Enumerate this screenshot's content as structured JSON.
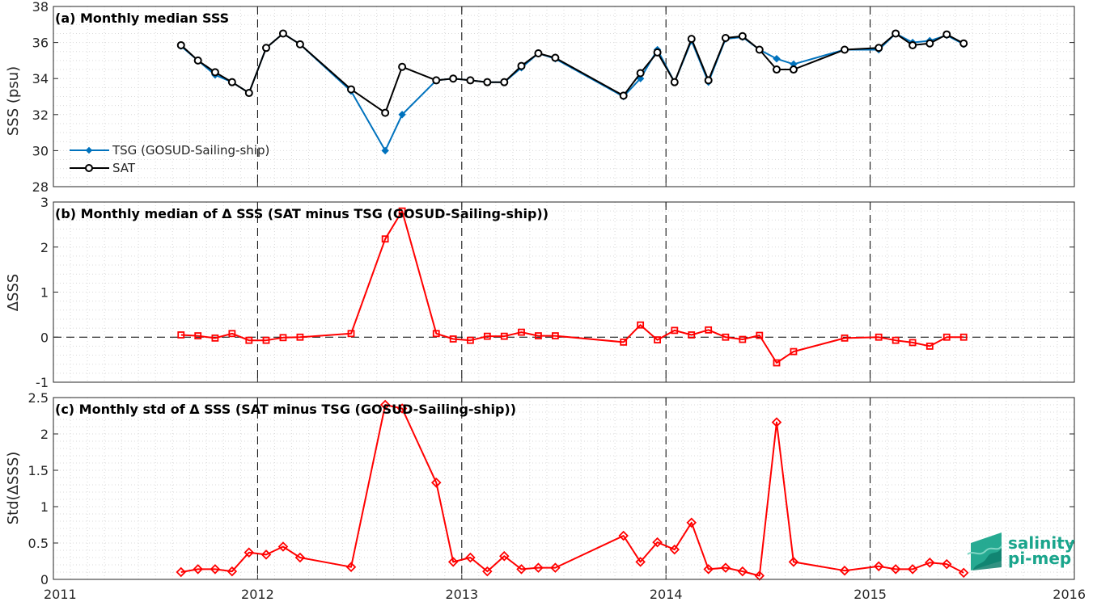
{
  "colors": {
    "tsg": "#0072bd",
    "sat": "#000000",
    "delta": "#ff0000",
    "logo": "#1aa58c"
  },
  "logo": {
    "line1": "salinity",
    "line2": "pi-mep"
  },
  "chart_data": [
    {
      "type": "line",
      "title": "(a) Monthly median SSS",
      "ylabel": "SSS (psu)",
      "xlim": [
        2011,
        2016
      ],
      "ylim": [
        28,
        38
      ],
      "xticks": [
        "2011",
        "2012",
        "2013",
        "2014",
        "2015",
        "2016"
      ],
      "yticks": [
        "28",
        "30",
        "32",
        "34",
        "36",
        "38"
      ],
      "grid": true,
      "legend_position": "bottom-left",
      "series": [
        {
          "name": "TSG (GOSUD-Sailing-ship)",
          "marker": "diamond-filled",
          "color": "#0072bd",
          "x": [
            2011.625,
            2011.708,
            2011.792,
            2011.875,
            2011.958,
            2012.042,
            2012.125,
            2012.208,
            2012.458,
            2012.625,
            2012.708,
            2012.875,
            2012.958,
            2013.042,
            2013.125,
            2013.208,
            2013.292,
            2013.375,
            2013.458,
            2013.792,
            2013.875,
            2013.958,
            2014.042,
            2014.125,
            2014.208,
            2014.292,
            2014.375,
            2014.458,
            2014.542,
            2014.625,
            2014.875,
            2015.042,
            2015.125,
            2015.208,
            2015.292,
            2015.375,
            2015.458
          ],
          "y": [
            35.8,
            35.0,
            34.2,
            33.8,
            33.2,
            35.7,
            36.5,
            35.9,
            33.3,
            30.0,
            32.0,
            33.9,
            34.0,
            33.9,
            33.8,
            33.8,
            34.6,
            35.4,
            35.1,
            33.0,
            34.0,
            35.6,
            33.8,
            36.1,
            33.8,
            36.2,
            36.3,
            35.6,
            35.1,
            34.8,
            35.6,
            35.6,
            36.5,
            36.0,
            36.1,
            36.4,
            35.9
          ]
        },
        {
          "name": "SAT",
          "marker": "circle-open",
          "color": "#000000",
          "x": [
            2011.625,
            2011.708,
            2011.792,
            2011.875,
            2011.958,
            2012.042,
            2012.125,
            2012.208,
            2012.458,
            2012.625,
            2012.708,
            2012.875,
            2012.958,
            2013.042,
            2013.125,
            2013.208,
            2013.292,
            2013.375,
            2013.458,
            2013.792,
            2013.875,
            2013.958,
            2014.042,
            2014.125,
            2014.208,
            2014.292,
            2014.375,
            2014.458,
            2014.542,
            2014.625,
            2014.875,
            2015.042,
            2015.125,
            2015.208,
            2015.292,
            2015.375,
            2015.458
          ],
          "y": [
            35.85,
            35.0,
            34.35,
            33.8,
            33.2,
            35.7,
            36.5,
            35.9,
            33.4,
            32.1,
            34.65,
            33.9,
            34.0,
            33.9,
            33.8,
            33.8,
            34.7,
            35.4,
            35.15,
            33.05,
            34.3,
            35.45,
            33.8,
            36.2,
            33.9,
            36.25,
            36.35,
            35.6,
            34.5,
            34.5,
            35.6,
            35.7,
            36.5,
            35.85,
            35.95,
            36.45,
            35.95
          ]
        }
      ]
    },
    {
      "type": "line",
      "title": "(b) Monthly median of Δ SSS (SAT minus TSG (GOSUD-Sailing-ship))",
      "ylabel": "ΔSSS",
      "xlim": [
        2011,
        2016
      ],
      "ylim": [
        -1,
        3
      ],
      "xticks": [
        "2011",
        "2012",
        "2013",
        "2014",
        "2015",
        "2016"
      ],
      "yticks": [
        "-1",
        "0",
        "1",
        "2",
        "3"
      ],
      "grid": true,
      "zero_line": true,
      "series": [
        {
          "marker": "square-open",
          "color": "#ff0000",
          "x": [
            2011.625,
            2011.708,
            2011.792,
            2011.875,
            2011.958,
            2012.042,
            2012.125,
            2012.208,
            2012.458,
            2012.625,
            2012.708,
            2012.875,
            2012.958,
            2013.042,
            2013.125,
            2013.208,
            2013.292,
            2013.375,
            2013.458,
            2013.792,
            2013.875,
            2013.958,
            2014.042,
            2014.125,
            2014.208,
            2014.292,
            2014.375,
            2014.458,
            2014.542,
            2014.625,
            2014.875,
            2015.042,
            2015.125,
            2015.208,
            2015.292,
            2015.375,
            2015.458
          ],
          "y": [
            0.05,
            0.03,
            -0.02,
            0.08,
            -0.07,
            -0.07,
            -0.01,
            0.0,
            0.08,
            2.18,
            2.8,
            0.08,
            -0.04,
            -0.07,
            0.02,
            0.02,
            0.11,
            0.03,
            0.03,
            -0.11,
            0.27,
            -0.06,
            0.15,
            0.05,
            0.16,
            0.0,
            -0.05,
            0.04,
            -0.57,
            -0.32,
            -0.02,
            0.0,
            -0.07,
            -0.12,
            -0.2,
            0.0,
            0.0
          ]
        }
      ]
    },
    {
      "type": "line",
      "title": "(c) Monthly std of Δ SSS (SAT minus TSG (GOSUD-Sailing-ship))",
      "ylabel": "Std(ΔSSS)",
      "xlim": [
        2011,
        2016
      ],
      "ylim": [
        0,
        2.5
      ],
      "xticks": [
        "2011",
        "2012",
        "2013",
        "2014",
        "2015",
        "2016"
      ],
      "yticks": [
        "0",
        "0.5",
        "1",
        "1.5",
        "2",
        "2.5"
      ],
      "grid": true,
      "series": [
        {
          "marker": "diamond-open",
          "color": "#ff0000",
          "x": [
            2011.625,
            2011.708,
            2011.792,
            2011.875,
            2011.958,
            2012.042,
            2012.125,
            2012.208,
            2012.458,
            2012.625,
            2012.708,
            2012.875,
            2012.958,
            2013.042,
            2013.125,
            2013.208,
            2013.292,
            2013.375,
            2013.458,
            2013.792,
            2013.875,
            2013.958,
            2014.042,
            2014.125,
            2014.208,
            2014.292,
            2014.375,
            2014.458,
            2014.542,
            2014.625,
            2014.875,
            2015.042,
            2015.125,
            2015.208,
            2015.292,
            2015.375,
            2015.458
          ],
          "y": [
            0.1,
            0.14,
            0.14,
            0.11,
            0.37,
            0.34,
            0.45,
            0.3,
            0.17,
            2.4,
            2.35,
            1.33,
            0.24,
            0.3,
            0.11,
            0.32,
            0.14,
            0.16,
            0.16,
            0.6,
            0.24,
            0.51,
            0.41,
            0.78,
            0.14,
            0.16,
            0.11,
            0.05,
            2.16,
            0.24,
            0.12,
            0.18,
            0.14,
            0.14,
            0.23,
            0.21,
            0.09
          ]
        }
      ]
    }
  ]
}
